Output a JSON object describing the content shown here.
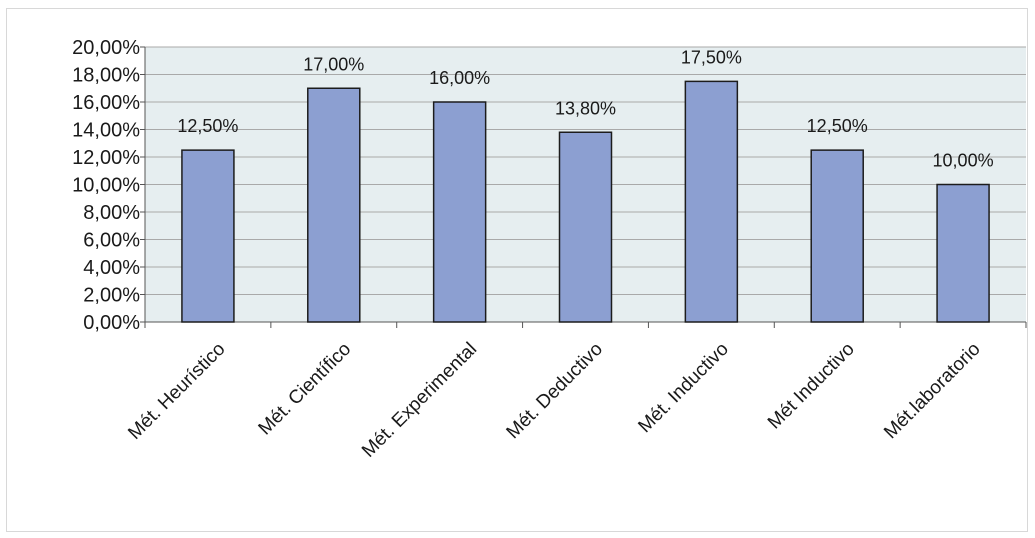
{
  "chart_data": {
    "type": "bar",
    "title": "",
    "xlabel": "",
    "ylabel": "",
    "categories": [
      "Mét. Heurístico",
      "Mét. Científico",
      "Mét. Experimental",
      "Mét. Deductivo",
      "Mét. Inductivo",
      "Mét Inductivo",
      "Mét.laboratorio"
    ],
    "values": [
      12.5,
      17.0,
      16.0,
      13.8,
      17.5,
      12.5,
      10.0
    ],
    "data_labels": [
      "12,50%",
      "17,00%",
      "16,00%",
      "13,80%",
      "17,50%",
      "12,50%",
      "10,00%"
    ],
    "ylim": [
      0,
      20
    ],
    "y_ticks": [
      "0,00%",
      "2,00%",
      "4,00%",
      "6,00%",
      "8,00%",
      "10,00%",
      "12,00%",
      "14,00%",
      "16,00%",
      "18,00%",
      "20,00%"
    ],
    "grid": true,
    "legend": "none",
    "colors": {
      "bar": "#8c9fd1",
      "bar_stroke": "#1c1c1c",
      "plot_background": "#e6eef0",
      "grid": "#a9a9a9"
    }
  }
}
